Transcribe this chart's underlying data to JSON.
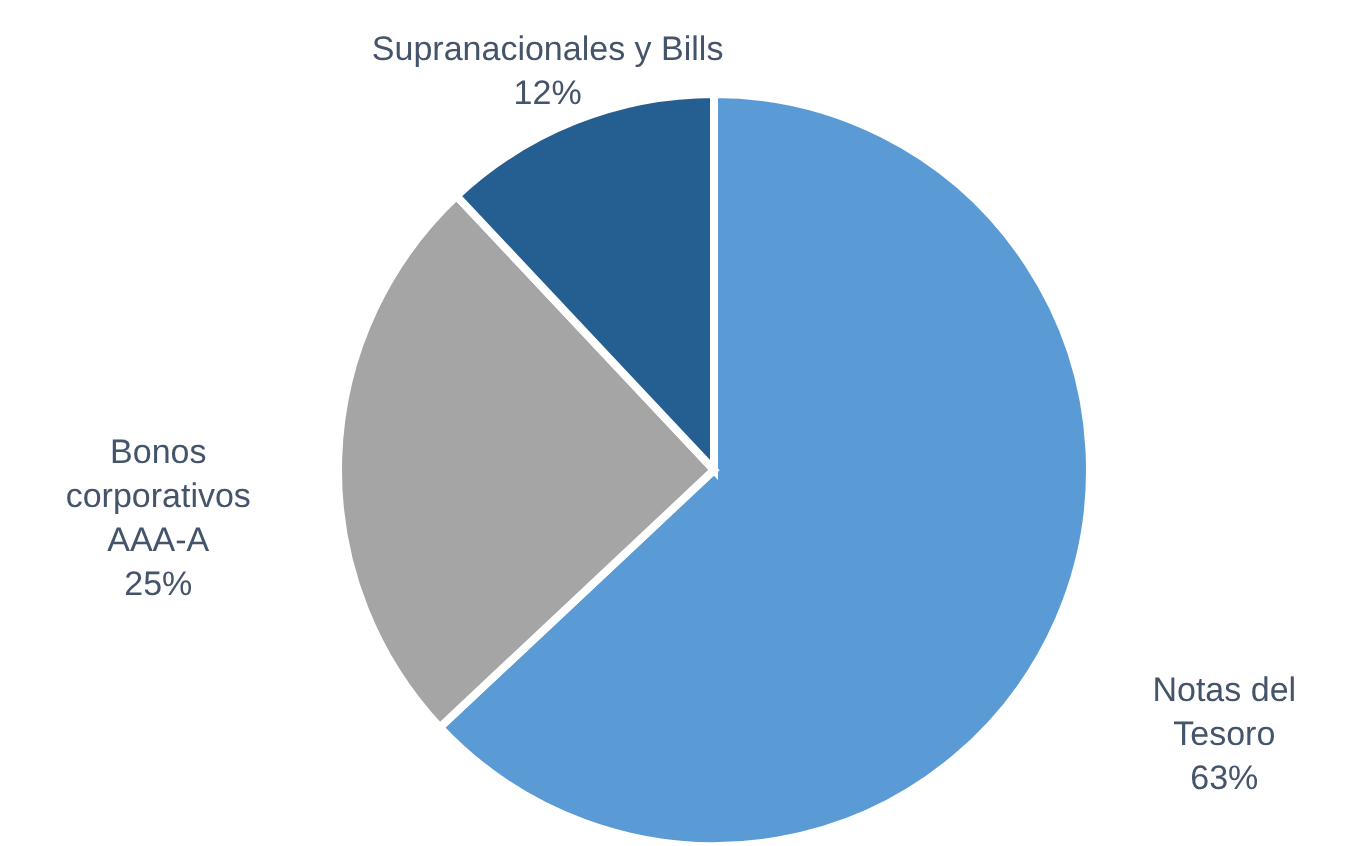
{
  "chart_data": {
    "type": "pie",
    "categories": [
      "Notas del Tesoro",
      "Bonos corporativos AAA-A",
      "Supranacionales y Bills"
    ],
    "values": [
      63,
      25,
      12
    ],
    "colors": [
      "#5b9bd5",
      "#a5a5a5",
      "#255e91"
    ],
    "value_labels": [
      "63%",
      "25%",
      "12%"
    ],
    "legend": false
  }
}
